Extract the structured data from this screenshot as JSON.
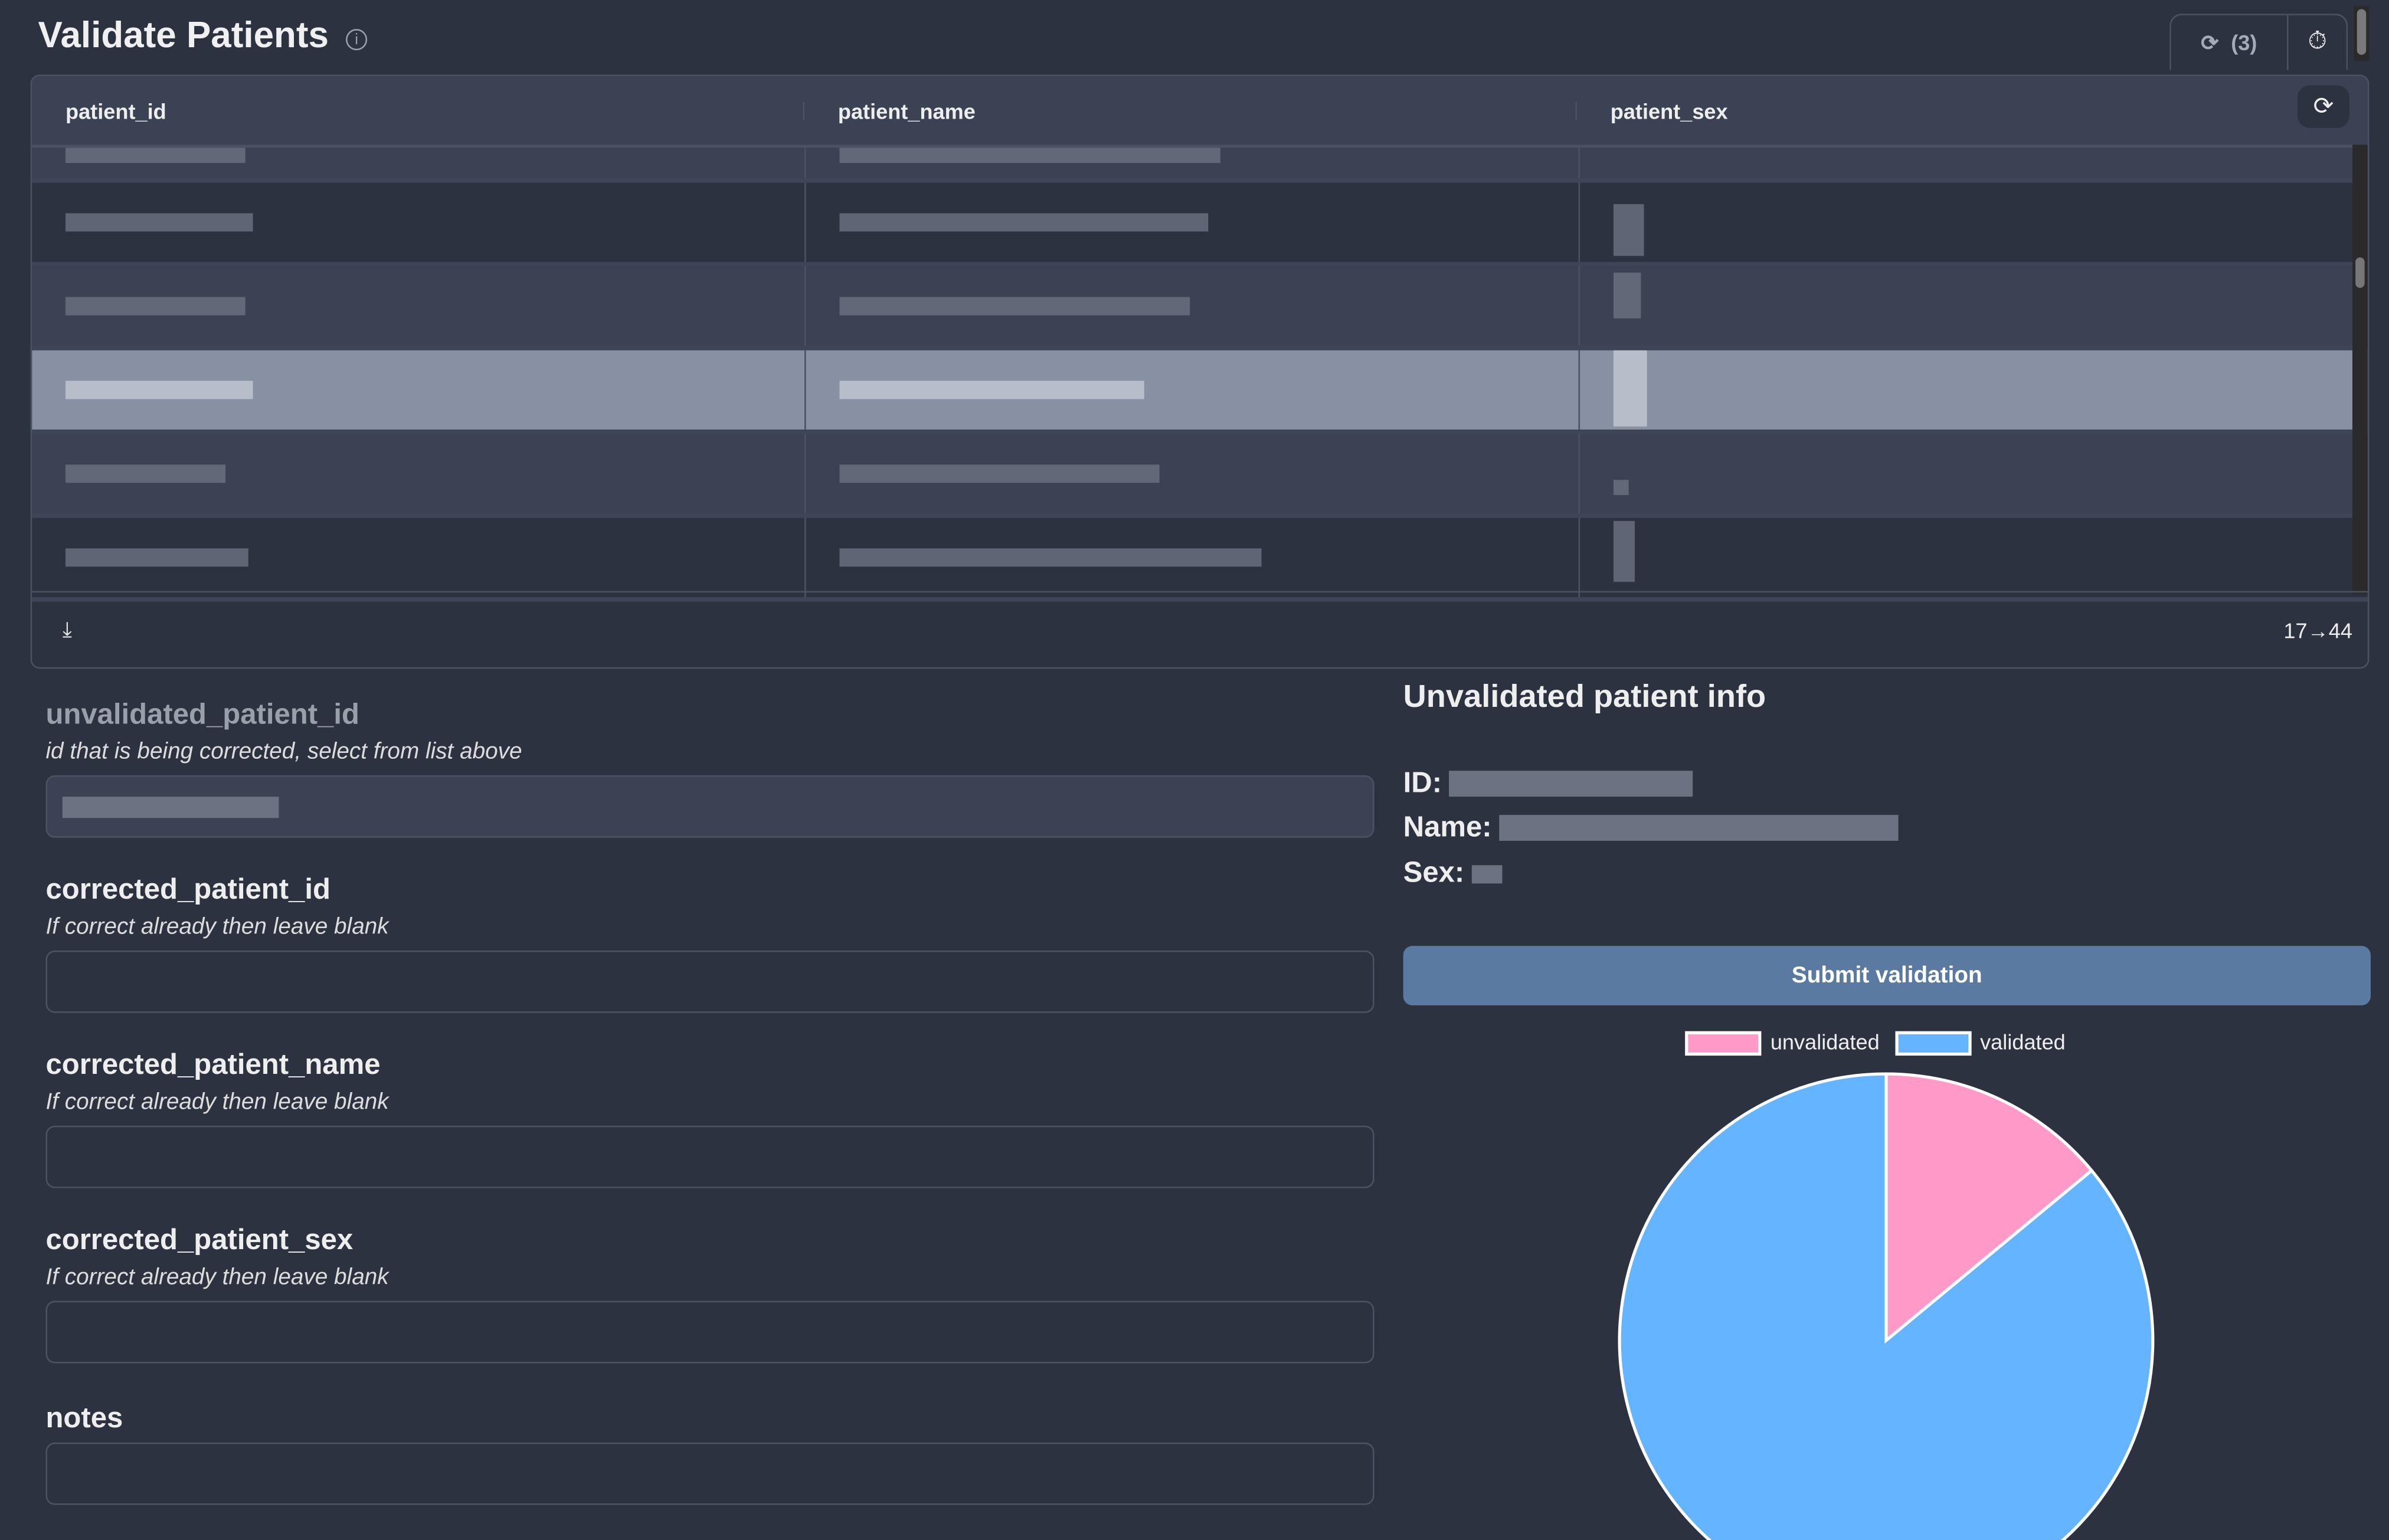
{
  "header": {
    "title": "Validate Patients",
    "refresh_count": "(3)"
  },
  "table": {
    "columns": [
      "patient_id",
      "patient_name",
      "patient_sex"
    ],
    "rows_redacted": true,
    "pagination": "17→44"
  },
  "form": {
    "fields": [
      {
        "label": "unvalidated_patient_id",
        "hint": "id that is being corrected, select from list above",
        "value": ""
      },
      {
        "label": "corrected_patient_id",
        "hint": "If correct already then leave blank",
        "value": ""
      },
      {
        "label": "corrected_patient_name",
        "hint": "If correct already then leave blank",
        "value": ""
      },
      {
        "label": "corrected_patient_sex",
        "hint": "If correct already then leave blank",
        "value": ""
      },
      {
        "label": "notes",
        "value": ""
      }
    ]
  },
  "info": {
    "title": "Unvalidated patient info",
    "id_label": "ID:",
    "name_label": "Name:",
    "sex_label": "Sex:"
  },
  "submit_label": "Submit validation",
  "chart_data": {
    "type": "pie",
    "title": "",
    "labels": [
      "unvalidated",
      "validated"
    ],
    "values": [
      14,
      86
    ],
    "colors": [
      "#ff9ac8",
      "#64b4ff"
    ],
    "legend": "top"
  }
}
